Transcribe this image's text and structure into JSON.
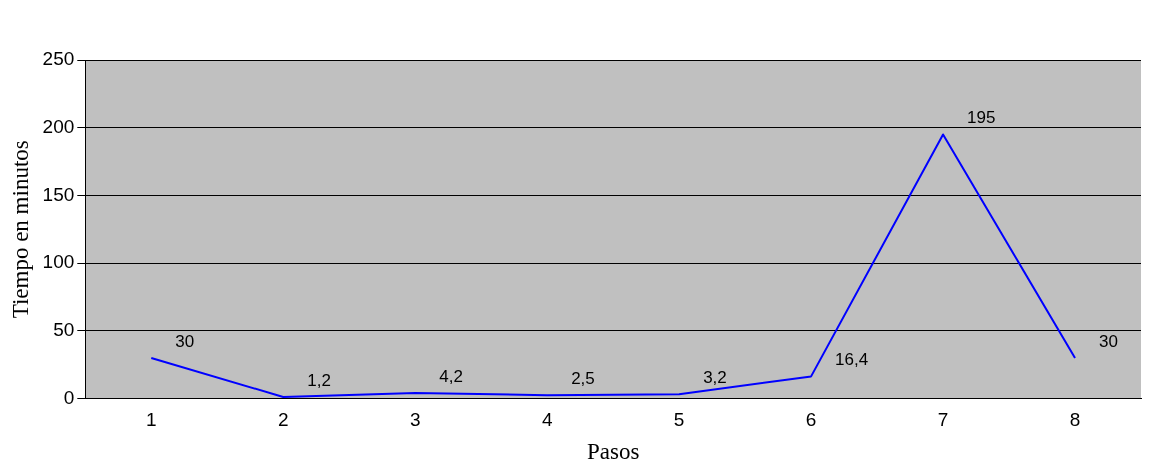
{
  "chart_data": {
    "type": "line",
    "xlabel": "Pasos",
    "ylabel": "Tiempo en minutos",
    "categories": [
      "1",
      "2",
      "3",
      "4",
      "5",
      "6",
      "7",
      "8"
    ],
    "series": [
      {
        "color": "#0000ff",
        "values": [
          30,
          1.2,
          4.2,
          2.5,
          3.2,
          16.4,
          195,
          30
        ],
        "value_labels": [
          "30",
          "1,2",
          "4,2",
          "2,5",
          "3,2",
          "16,4",
          "195",
          "30"
        ]
      }
    ],
    "ylim": [
      0,
      250
    ],
    "yticks": [
      0,
      50,
      100,
      150,
      200,
      250
    ],
    "grid": "y",
    "legend": false,
    "marker": "none",
    "line_style": "solid"
  }
}
